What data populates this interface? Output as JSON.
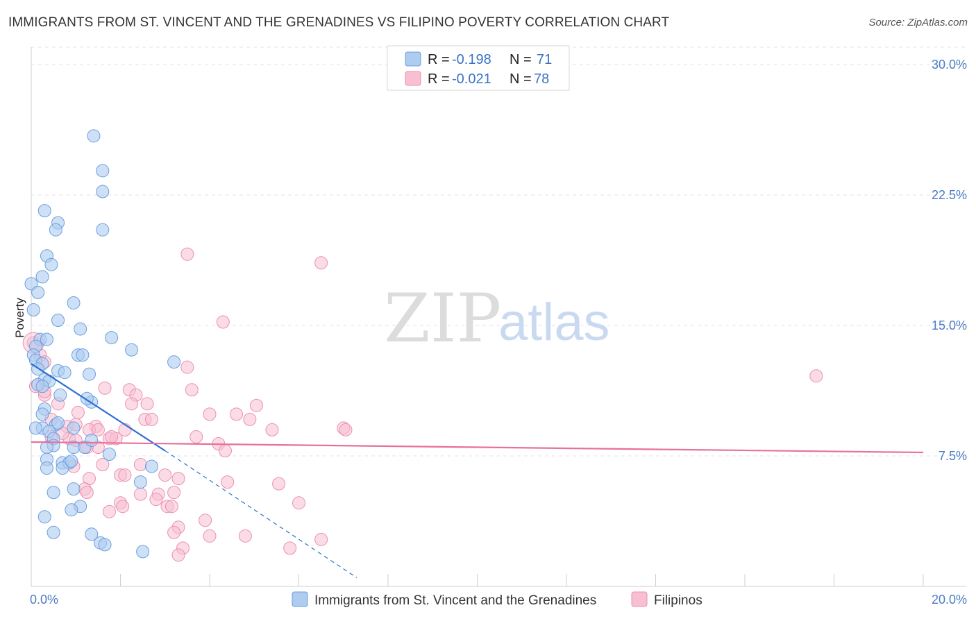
{
  "title": "IMMIGRANTS FROM ST. VINCENT AND THE GRENADINES VS FILIPINO POVERTY CORRELATION CHART",
  "source": "Source: ZipAtlas.com",
  "watermark": {
    "zip": "ZIP",
    "atlas": "atlas"
  },
  "colors": {
    "blue_fill": "#aecbf0",
    "blue_stroke": "#6a9fe0",
    "blue_line": "#2e6fd1",
    "pink_fill": "#f7bfd1",
    "pink_stroke": "#ec8fae",
    "pink_line": "#e8709a",
    "grid": "#e3e3e3",
    "tick_label": "#4a7cc7"
  },
  "legend": {
    "rows": [
      {
        "r_label": "R =",
        "r_value": "-0.198",
        "n_label": "N =",
        "n_value": "71"
      },
      {
        "r_label": "R =",
        "r_value": "-0.021",
        "n_label": "N =",
        "n_value": "78"
      }
    ]
  },
  "chart_data": {
    "type": "scatter",
    "title": "IMMIGRANTS FROM ST. VINCENT AND THE GRENADINES VS FILIPINO POVERTY CORRELATION CHART",
    "xlabel": "",
    "ylabel": "Poverty",
    "xlim": [
      0,
      20
    ],
    "ylim": [
      0,
      31
    ],
    "x_tick_labels": [
      {
        "value": 0,
        "label": "0.0%"
      },
      {
        "value": 20,
        "label": "20.0%"
      }
    ],
    "y_tick_labels": [
      {
        "value": 7.5,
        "label": "7.5%"
      },
      {
        "value": 15,
        "label": "15.0%"
      },
      {
        "value": 22.5,
        "label": "22.5%"
      },
      {
        "value": 30,
        "label": "30.0%"
      }
    ],
    "grid": true,
    "legend_position": "top-center",
    "series": [
      {
        "name": "Immigrants from St. Vincent and the Grenadines",
        "color": "#aecbf0",
        "R": -0.198,
        "N": 71,
        "trend": {
          "x0": 0.0,
          "y0": 12.8,
          "x1": 3.0,
          "y1": 7.8,
          "dash_to_x": 7.3,
          "dash_to_y": 0.5
        },
        "points": [
          [
            1.4,
            25.9
          ],
          [
            1.6,
            23.9
          ],
          [
            1.6,
            22.7
          ],
          [
            0.3,
            21.6
          ],
          [
            0.6,
            20.9
          ],
          [
            0.55,
            20.5
          ],
          [
            1.6,
            20.5
          ],
          [
            0.35,
            19.0
          ],
          [
            0.45,
            18.5
          ],
          [
            0.25,
            17.8
          ],
          [
            0.0,
            17.4
          ],
          [
            0.15,
            16.9
          ],
          [
            0.95,
            16.3
          ],
          [
            0.05,
            15.9
          ],
          [
            0.6,
            15.3
          ],
          [
            1.1,
            14.8
          ],
          [
            1.8,
            14.3
          ],
          [
            0.2,
            14.2
          ],
          [
            0.35,
            14.2
          ],
          [
            0.1,
            13.8
          ],
          [
            0.05,
            13.3
          ],
          [
            1.05,
            13.3
          ],
          [
            1.15,
            13.3
          ],
          [
            0.1,
            13.0
          ],
          [
            0.25,
            12.8
          ],
          [
            0.15,
            12.5
          ],
          [
            0.6,
            12.4
          ],
          [
            0.75,
            12.3
          ],
          [
            1.3,
            12.2
          ],
          [
            0.3,
            11.9
          ],
          [
            0.4,
            11.8
          ],
          [
            0.15,
            11.6
          ],
          [
            0.25,
            11.5
          ],
          [
            0.65,
            11.0
          ],
          [
            1.35,
            10.6
          ],
          [
            0.3,
            10.2
          ],
          [
            0.25,
            9.9
          ],
          [
            0.55,
            9.3
          ],
          [
            0.6,
            9.4
          ],
          [
            0.25,
            9.1
          ],
          [
            0.1,
            9.1
          ],
          [
            0.95,
            9.1
          ],
          [
            0.4,
            8.9
          ],
          [
            0.5,
            8.5
          ],
          [
            0.5,
            8.1
          ],
          [
            0.35,
            8.0
          ],
          [
            0.95,
            8.0
          ],
          [
            1.2,
            8.0
          ],
          [
            1.35,
            8.4
          ],
          [
            1.75,
            7.6
          ],
          [
            0.35,
            7.3
          ],
          [
            0.7,
            7.1
          ],
          [
            0.85,
            7.1
          ],
          [
            0.35,
            6.8
          ],
          [
            0.7,
            6.8
          ],
          [
            2.7,
            6.9
          ],
          [
            2.45,
            6.0
          ],
          [
            0.5,
            5.4
          ],
          [
            0.95,
            5.6
          ],
          [
            1.1,
            4.6
          ],
          [
            0.9,
            4.4
          ],
          [
            0.3,
            4.0
          ],
          [
            0.5,
            3.1
          ],
          [
            1.35,
            3.0
          ],
          [
            1.55,
            2.5
          ],
          [
            1.65,
            2.4
          ],
          [
            2.5,
            2.0
          ],
          [
            1.25,
            10.8
          ],
          [
            2.25,
            13.6
          ],
          [
            0.9,
            7.2
          ],
          [
            3.2,
            12.9
          ]
        ]
      },
      {
        "name": "Filipinos",
        "color": "#f7bfd1",
        "R": -0.021,
        "N": 78,
        "trend": {
          "x0": 0.0,
          "y0": 8.3,
          "x1": 20.0,
          "y1": 7.7
        },
        "points": [
          [
            3.5,
            19.1
          ],
          [
            6.5,
            18.6
          ],
          [
            4.3,
            15.2
          ],
          [
            0.05,
            14.0
          ],
          [
            0.2,
            13.3
          ],
          [
            0.3,
            12.9
          ],
          [
            3.5,
            12.6
          ],
          [
            17.6,
            12.1
          ],
          [
            0.1,
            11.5
          ],
          [
            1.65,
            11.4
          ],
          [
            2.2,
            11.3
          ],
          [
            2.35,
            11.0
          ],
          [
            3.6,
            11.3
          ],
          [
            0.3,
            11.0
          ],
          [
            0.6,
            10.5
          ],
          [
            2.25,
            10.5
          ],
          [
            2.6,
            10.5
          ],
          [
            5.05,
            10.4
          ],
          [
            1.05,
            10.0
          ],
          [
            4.0,
            9.9
          ],
          [
            4.6,
            9.9
          ],
          [
            4.9,
            9.6
          ],
          [
            2.55,
            9.6
          ],
          [
            2.7,
            9.6
          ],
          [
            0.45,
            9.6
          ],
          [
            0.8,
            9.2
          ],
          [
            1.45,
            9.2
          ],
          [
            1.3,
            9.0
          ],
          [
            1.5,
            9.0
          ],
          [
            5.4,
            9.0
          ],
          [
            7.0,
            9.1
          ],
          [
            7.05,
            9.0
          ],
          [
            0.45,
            8.6
          ],
          [
            0.85,
            8.5
          ],
          [
            1.75,
            8.5
          ],
          [
            1.9,
            8.5
          ],
          [
            3.7,
            8.6
          ],
          [
            4.2,
            8.2
          ],
          [
            1.0,
            8.4
          ],
          [
            1.5,
            8.0
          ],
          [
            4.35,
            7.8
          ],
          [
            1.25,
            8.0
          ],
          [
            1.6,
            7.0
          ],
          [
            2.45,
            7.0
          ],
          [
            0.95,
            6.9
          ],
          [
            3.0,
            6.4
          ],
          [
            3.3,
            6.2
          ],
          [
            2.0,
            6.4
          ],
          [
            2.1,
            6.4
          ],
          [
            1.3,
            6.2
          ],
          [
            4.4,
            6.0
          ],
          [
            5.55,
            5.9
          ],
          [
            1.2,
            5.6
          ],
          [
            1.25,
            5.4
          ],
          [
            2.45,
            5.3
          ],
          [
            2.85,
            5.3
          ],
          [
            3.2,
            5.4
          ],
          [
            2.8,
            5.0
          ],
          [
            6.0,
            4.8
          ],
          [
            2.0,
            4.8
          ],
          [
            2.05,
            4.6
          ],
          [
            3.05,
            4.6
          ],
          [
            3.15,
            4.6
          ],
          [
            1.75,
            4.3
          ],
          [
            3.3,
            3.4
          ],
          [
            3.9,
            3.8
          ],
          [
            3.2,
            3.1
          ],
          [
            4.0,
            2.9
          ],
          [
            4.8,
            2.9
          ],
          [
            6.5,
            2.7
          ],
          [
            3.4,
            2.2
          ],
          [
            3.3,
            1.8
          ],
          [
            5.8,
            2.2
          ],
          [
            0.3,
            11.2
          ],
          [
            1.0,
            9.3
          ],
          [
            0.7,
            8.8
          ],
          [
            2.1,
            9.0
          ],
          [
            1.8,
            8.6
          ]
        ]
      }
    ]
  },
  "bottom_legend": {
    "items": [
      {
        "label": "Immigrants from St. Vincent and the Grenadines"
      },
      {
        "label": "Filipinos"
      }
    ]
  }
}
